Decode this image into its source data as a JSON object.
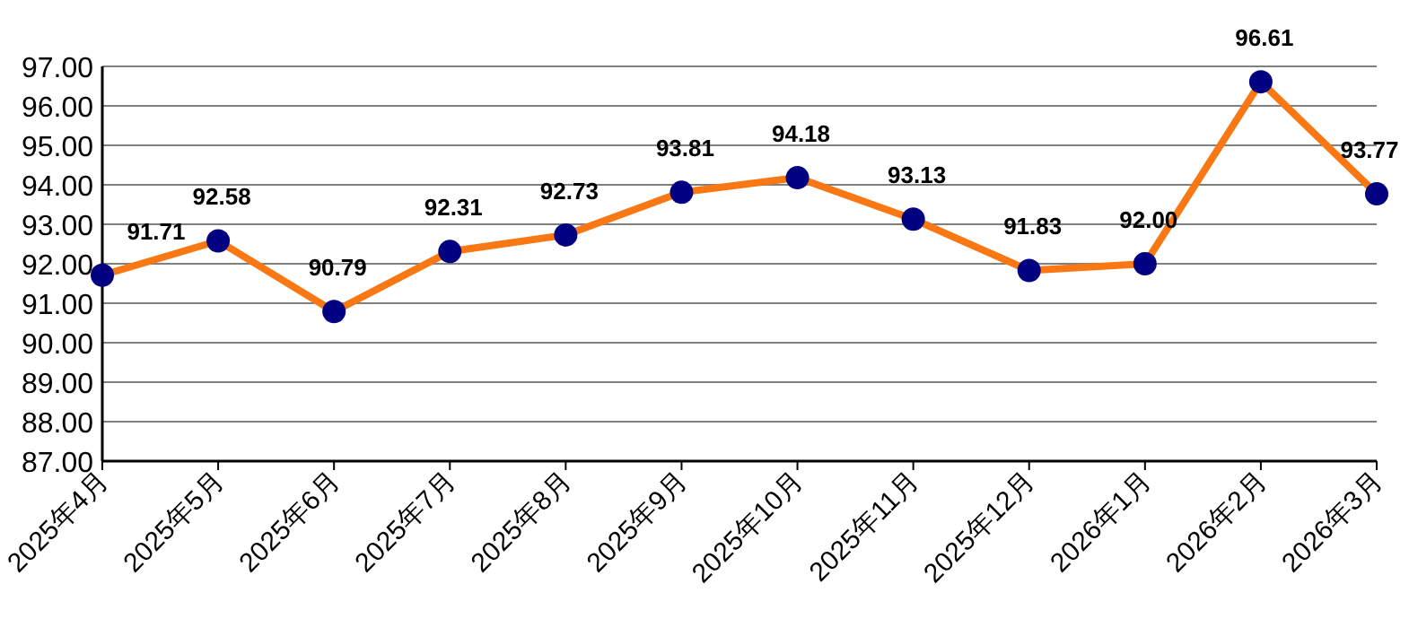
{
  "chart_data": {
    "type": "line",
    "categories": [
      "2025年4月",
      "2025年5月",
      "2025年6月",
      "2025年7月",
      "2025年8月",
      "2025年9月",
      "2025年10月",
      "2025年11月",
      "2025年12月",
      "2026年1月",
      "2026年2月",
      "2026年3月"
    ],
    "series": [
      {
        "color": "#fa7814",
        "colors": [
          "#000080",
          "#000080",
          "#000080",
          "#000080",
          "#000080",
          "#000080",
          "#000080",
          "#000080",
          "#000080",
          "#000080",
          "#000080",
          "#000080"
        ],
        "values": [
          91.71,
          92.58,
          90.79,
          92.31,
          92.73,
          93.81,
          94.18,
          93.13,
          91.83,
          92.0,
          96.61,
          93.77
        ],
        "value_labels": [
          "91.71",
          "92.58",
          "90.79",
          "92.31",
          "92.73",
          "93.81",
          "94.18",
          "93.13",
          "91.83",
          "92.00",
          "96.61",
          "93.77"
        ]
      }
    ],
    "ylim": [
      87,
      97
    ],
    "yticks": [
      {
        "value": 87,
        "label": "87.00"
      },
      {
        "value": 88,
        "label": "88.00"
      },
      {
        "value": 89,
        "label": "89.00"
      },
      {
        "value": 90,
        "label": "90.00"
      },
      {
        "value": 91,
        "label": "91.00"
      },
      {
        "value": 92,
        "label": "92.00"
      },
      {
        "value": 93,
        "label": "93.00"
      },
      {
        "value": 94,
        "label": "94.00"
      },
      {
        "value": 95,
        "label": "95.00"
      },
      {
        "value": 96,
        "label": "96.00"
      },
      {
        "value": 97,
        "label": "97.00"
      }
    ],
    "grid": "y",
    "marker": "circle",
    "line_style": "solid"
  }
}
